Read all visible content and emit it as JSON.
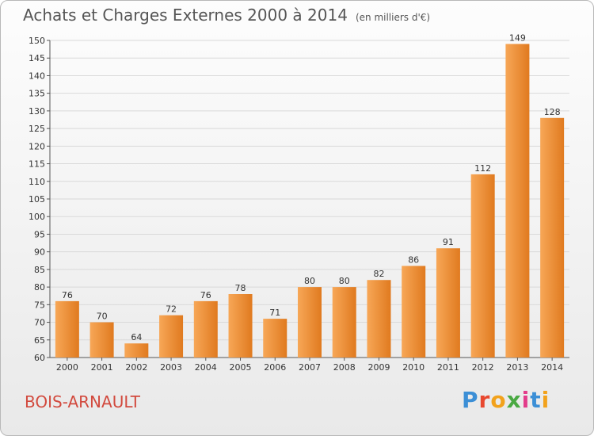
{
  "header": {
    "title": "Achats et Charges Externes 2000 à 2014",
    "subtitle": "(en milliers d'€)"
  },
  "footer": {
    "commune": "BOIS-ARNAULT",
    "brand": "Proxiti"
  },
  "colors": {
    "bar_light": "#f7a757",
    "bar_dark": "#e07a1f",
    "commune_text": "#d24a3e",
    "grid": "#d9d9d9"
  },
  "chart_data": {
    "type": "bar",
    "title": "Achats et Charges Externes 2000 à 2014",
    "subtitle": "(en milliers d'€)",
    "xlabel": "",
    "ylabel": "",
    "categories": [
      "2000",
      "2001",
      "2002",
      "2003",
      "2004",
      "2005",
      "2006",
      "2007",
      "2008",
      "2009",
      "2010",
      "2011",
      "2012",
      "2013",
      "2014"
    ],
    "values": [
      76,
      70,
      64,
      72,
      76,
      78,
      71,
      80,
      80,
      82,
      86,
      91,
      112,
      149,
      128
    ],
    "ylim": [
      60,
      150
    ],
    "yticks": [
      60,
      65,
      70,
      75,
      80,
      85,
      90,
      95,
      100,
      105,
      110,
      115,
      120,
      125,
      130,
      135,
      140,
      145,
      150
    ],
    "grid": true,
    "legend": "none"
  }
}
